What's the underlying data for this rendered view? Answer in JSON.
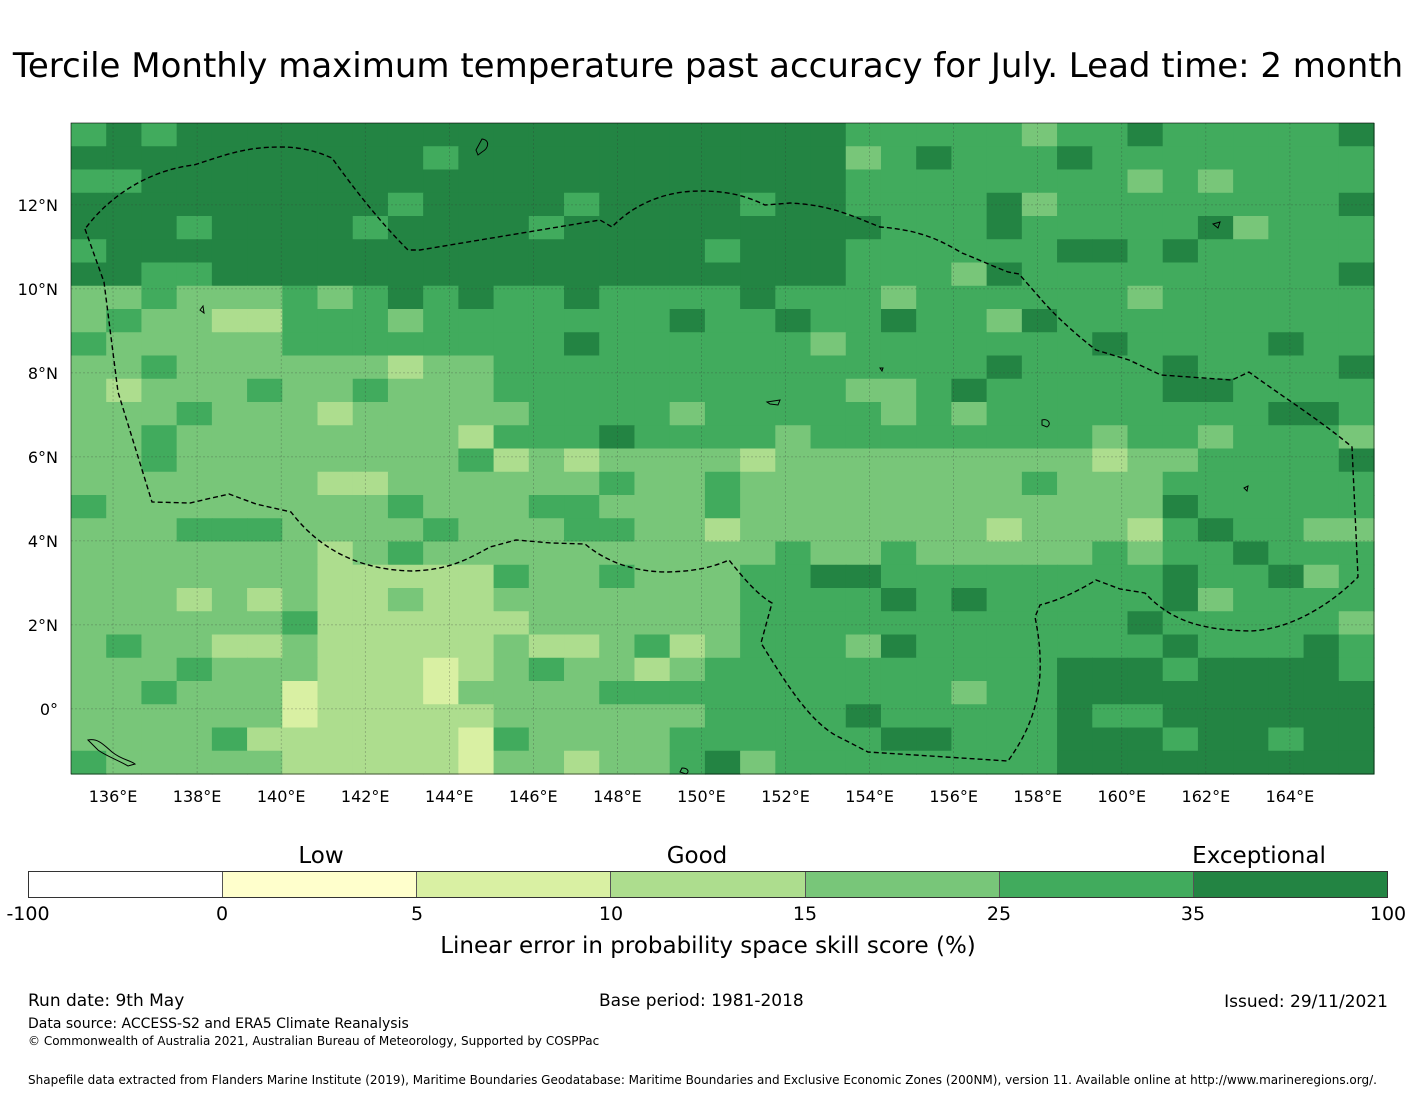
{
  "title": "Tercile Monthly maximum temperature past accuracy for July. Lead time: 2 month",
  "map": {
    "lat_labels": [
      "12°N",
      "10°N",
      "8°N",
      "6°N",
      "4°N",
      "2°N",
      "0°"
    ],
    "lon_labels": [
      "136°E",
      "138°E",
      "140°E",
      "142°E",
      "144°E",
      "146°E",
      "148°E",
      "150°E",
      "152°E",
      "154°E",
      "156°E",
      "158°E",
      "160°E",
      "162°E",
      "164°E"
    ],
    "extent": {
      "lon_min": 135,
      "lon_max": 166,
      "lat_min": -1.55,
      "lat_max": 13.95
    },
    "grid_colors": {
      "c1": "#d9f0a3",
      "c2": "#addd8e",
      "c3": "#78c679",
      "c4": "#41ab5d",
      "c5": "#238443"
    },
    "boundary_color": "#000000"
  },
  "legend": {
    "categories": [
      "Low",
      "Good",
      "Exceptional"
    ],
    "ticks": [
      "-100",
      "0",
      "5",
      "10",
      "15",
      "25",
      "35",
      "100"
    ],
    "colors": [
      "#ffffff",
      "#ffffcc",
      "#d9f0a3",
      "#addd8e",
      "#78c679",
      "#41ab5d",
      "#238443"
    ],
    "label": "Linear error in probability space skill score (%)"
  },
  "footer": {
    "run_date": "Run date: 9th May",
    "base_period": "Base period: 1981-2018",
    "issued": "Issued: 29/11/2021",
    "data_source": "Data source: ACCESS-S2 and ERA5 Climate Reanalysis",
    "copyright": "© Commonwealth of Australia 2021, Australian Bureau of Meteorology, Supported by COSPPac",
    "shapefile": "Shapefile data extracted from Flanders Marine Institute (2019), Maritime Boundaries Geodatabase: Maritime Boundaries and Exclusive Economic Zones (200NM), version 11. Available online at http://www.marineregions.org/."
  }
}
